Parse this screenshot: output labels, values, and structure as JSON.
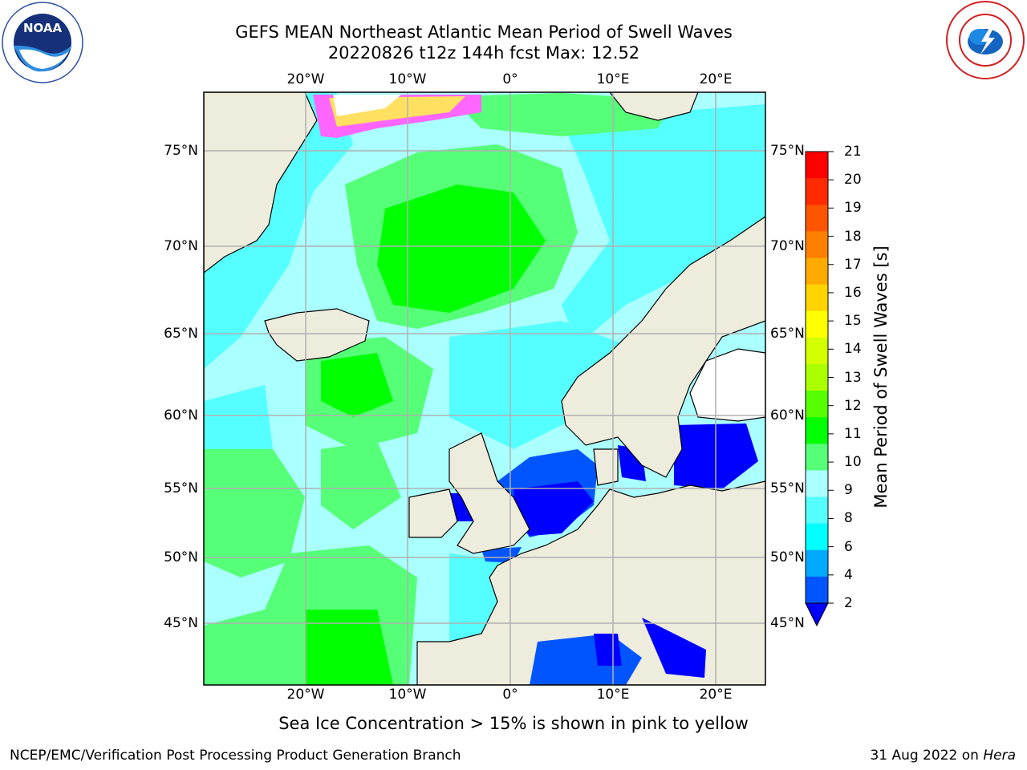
{
  "header": {
    "title_line1": "GEFS MEAN Northeast Atlantic Mean Period of Swell Waves",
    "title_line2": "20220826 t12z 144h fcst   Max: 12.52"
  },
  "logos": {
    "left": "noaa-logo",
    "right": "national-weather-service-logo"
  },
  "map": {
    "x_ticks": [
      "20°W",
      "10°W",
      "0°",
      "10°E",
      "20°E"
    ],
    "y_ticks": [
      "75°N",
      "70°N",
      "65°N",
      "60°N",
      "55°N",
      "50°N",
      "45°N"
    ],
    "land_color": "#eeecdc",
    "grid_color": "#b0b0b0"
  },
  "colorbar": {
    "label": "Mean Period of Swell Waves [s]",
    "ticks": [
      "21",
      "20",
      "19",
      "18",
      "17",
      "16",
      "15",
      "14",
      "13",
      "12",
      "11",
      "10",
      "9",
      "8",
      "6",
      "4",
      "2"
    ],
    "colors": [
      "#ff0000",
      "#ff2a00",
      "#ff5500",
      "#ff7f00",
      "#ffaa00",
      "#ffd400",
      "#ffff00",
      "#d4ff00",
      "#aaff00",
      "#55ff00",
      "#00ff00",
      "#55ff77",
      "#aaffff",
      "#55ffff",
      "#00ffff",
      "#00aaff",
      "#0055ff"
    ],
    "extend_color": "#0000ff"
  },
  "note": "Sea Ice Concentration > 15% is shown in pink to yellow",
  "footer": {
    "left": "NCEP/EMC/Verification Post Processing Product Generation Branch",
    "right_date": "31 Aug 2022 on ",
    "right_machine": "Hera"
  }
}
